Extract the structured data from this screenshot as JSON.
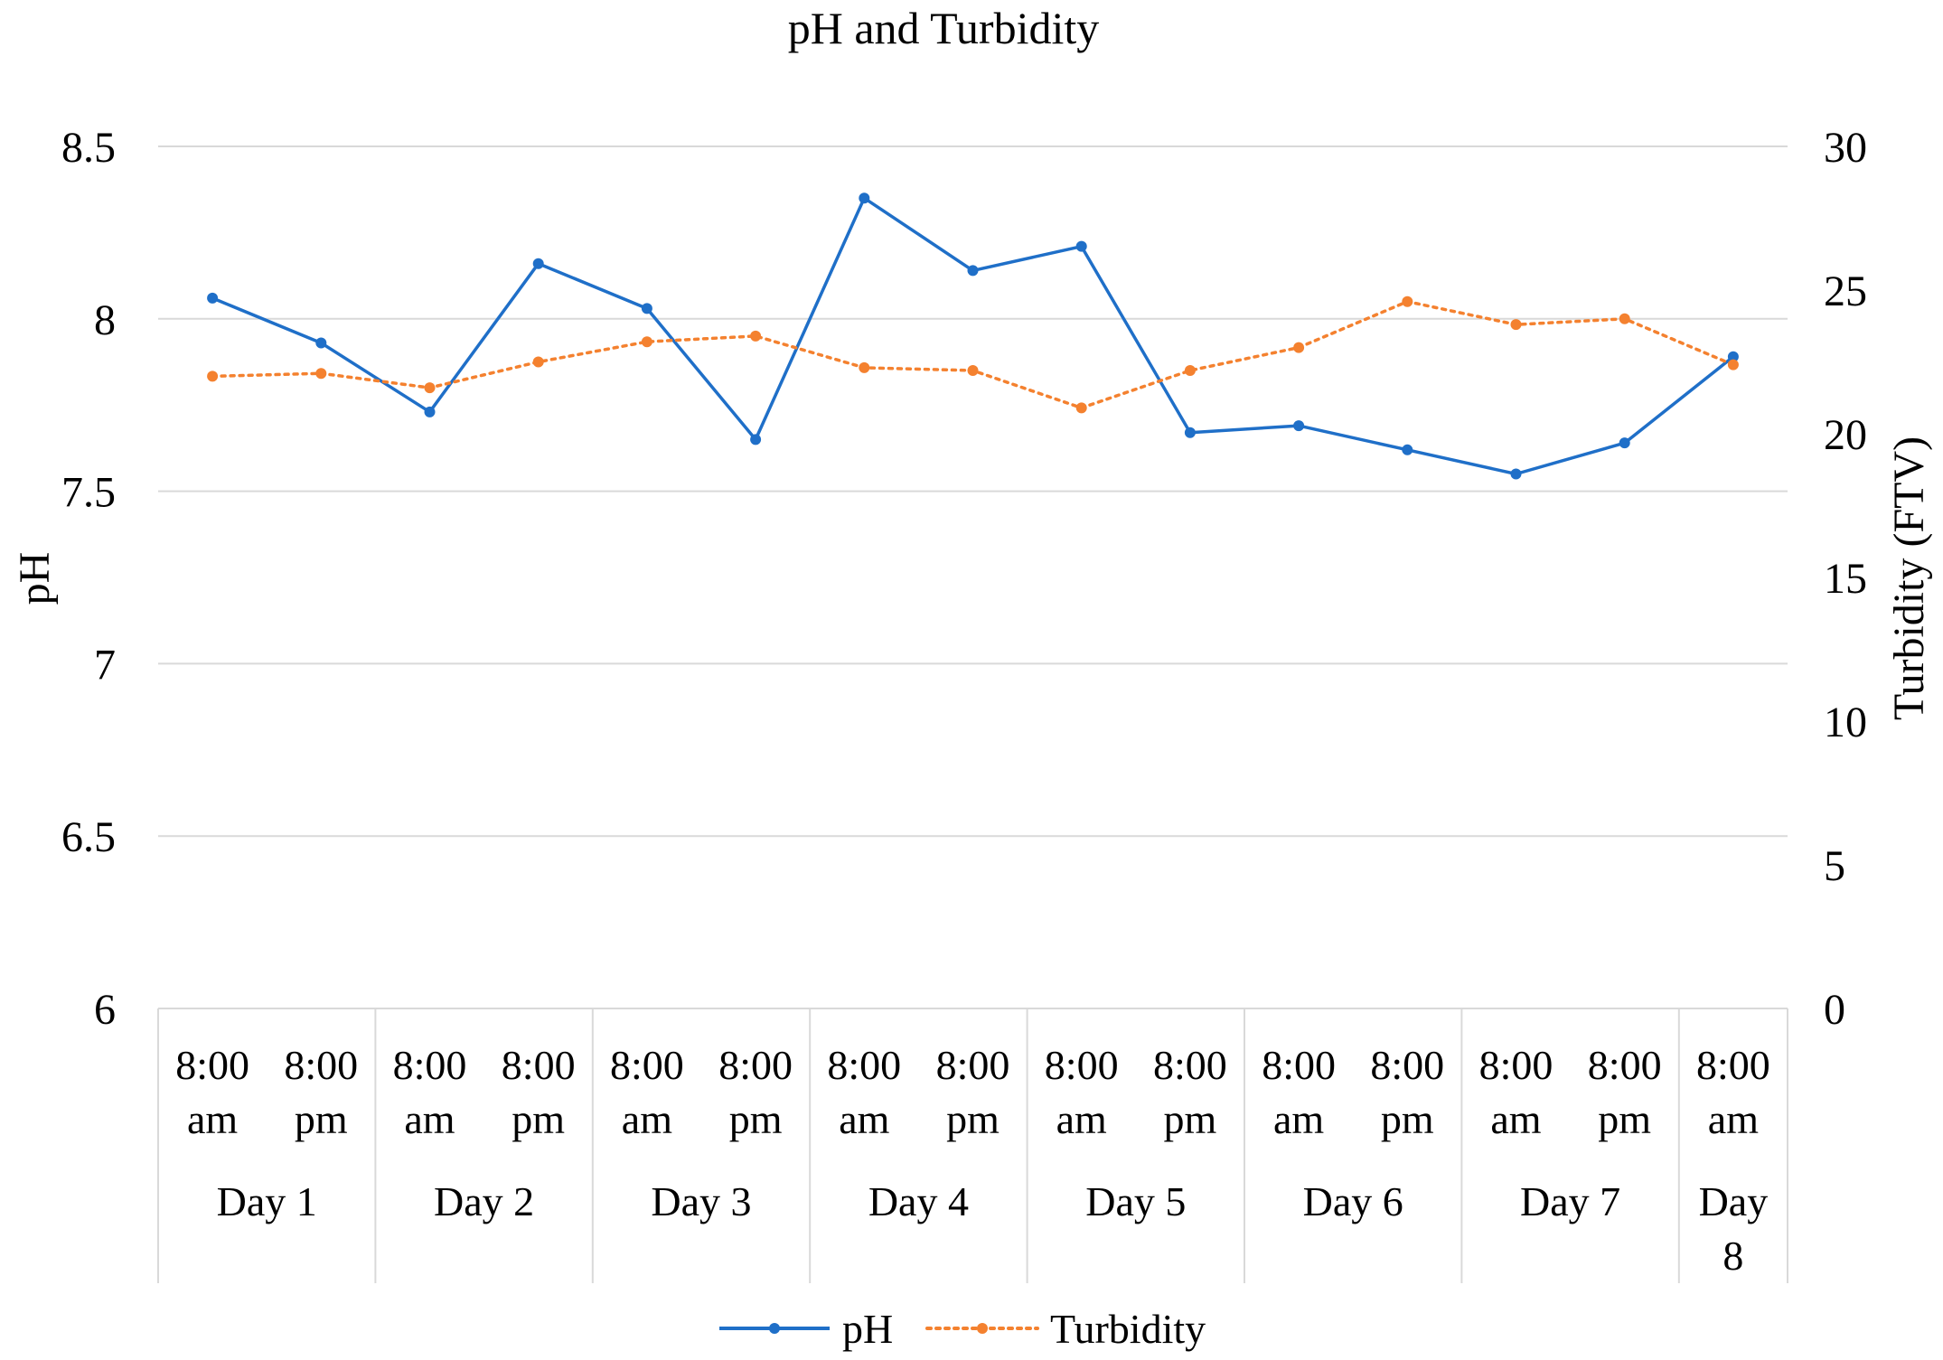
{
  "chart_data": {
    "type": "line",
    "title": "pH and Turbidity",
    "ylabel": "pH",
    "y2label": "Turbidity (FTV)",
    "ylim": [
      6,
      8.5
    ],
    "y2lim": [
      0,
      30
    ],
    "yticks": [
      "6",
      "6.5",
      "7",
      "7.5",
      "8",
      "8.5"
    ],
    "y2ticks": [
      "0",
      "5",
      "10",
      "15",
      "20",
      "25",
      "30"
    ],
    "times": [
      [
        "8:00",
        "am"
      ],
      [
        "8:00",
        "pm"
      ],
      [
        "8:00",
        "am"
      ],
      [
        "8:00",
        "pm"
      ],
      [
        "8:00",
        "am"
      ],
      [
        "8:00",
        "pm"
      ],
      [
        "8:00",
        "am"
      ],
      [
        "8:00",
        "pm"
      ],
      [
        "8:00",
        "am"
      ],
      [
        "8:00",
        "pm"
      ],
      [
        "8:00",
        "am"
      ],
      [
        "8:00",
        "pm"
      ],
      [
        "8:00",
        "am"
      ],
      [
        "8:00",
        "pm"
      ],
      [
        "8:00",
        "am"
      ]
    ],
    "days": [
      [
        "Day 1"
      ],
      [
        "Day 2"
      ],
      [
        "Day 3"
      ],
      [
        "Day 4"
      ],
      [
        "Day 5"
      ],
      [
        "Day 6"
      ],
      [
        "Day 7"
      ],
      [
        "Day",
        "8"
      ]
    ],
    "series": [
      {
        "name": "pH",
        "axis": "left",
        "color": "#1F6FC8",
        "style": "solid",
        "values": [
          8.06,
          7.93,
          7.73,
          8.16,
          8.03,
          7.65,
          8.35,
          8.14,
          8.21,
          7.67,
          7.69,
          7.62,
          7.55,
          7.64,
          7.89
        ]
      },
      {
        "name": "Turbidity",
        "axis": "right",
        "color": "#F4812F",
        "style": "dotted",
        "values": [
          22.0,
          22.1,
          21.6,
          22.5,
          23.2,
          23.4,
          22.3,
          22.2,
          20.9,
          22.2,
          23.0,
          24.6,
          23.8,
          24.0,
          22.4
        ]
      }
    ],
    "legend_position": "bottom",
    "grid": true
  }
}
